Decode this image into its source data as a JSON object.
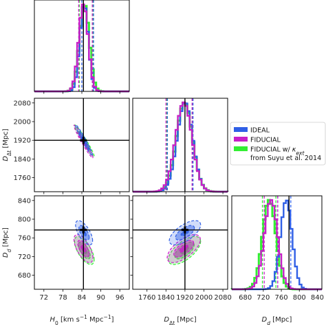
{
  "chart_data": {
    "type": "corner",
    "legend": {
      "placement": "right",
      "entries": [
        {
          "key": "ideal",
          "label": "IDEAL",
          "color": "#2f5fe6"
        },
        {
          "key": "fiducial",
          "label": "FIDUCIAL",
          "color": "#c81fc8"
        },
        {
          "key": "kext",
          "label": "FIDUCIAL w/ κext",
          "label_line2": "from Suyu et al. 2014",
          "color": "#33ee33"
        }
      ]
    },
    "parameters": [
      {
        "key": "H0",
        "label": "H0 [km s⁻¹ Mpc⁻¹]",
        "range": [
          69,
          99
        ],
        "ticks": [
          72,
          78,
          84,
          90,
          96
        ],
        "truth": 84.5
      },
      {
        "key": "Ddt",
        "label": "DΔt [Mpc]",
        "range": [
          1700,
          2100
        ],
        "ticks": [
          1760,
          1840,
          1920,
          2000,
          2080
        ],
        "truth": 1920
      },
      {
        "key": "Dd",
        "label": "Dd [Mpc]",
        "range": [
          650,
          850
        ],
        "ticks": [
          680,
          720,
          760,
          800,
          840
        ],
        "truth": 777
      }
    ],
    "y_axis_labels": [
      {
        "panel": "Ddt_vs_H0",
        "label": "DΔt [Mpc]",
        "ticks": [
          1760,
          1840,
          1920,
          2000,
          2080
        ]
      },
      {
        "panel": "Dd_vs_H0",
        "label": "Dd [Mpc]",
        "ticks": [
          680,
          720,
          760,
          800,
          840
        ]
      }
    ],
    "marginals": {
      "H0": {
        "ideal": {
          "mean": 84.7,
          "sigma": 1.35,
          "q16": 84.0,
          "q84": 87.7
        },
        "fiducial": {
          "mean": 84.5,
          "sigma": 1.5,
          "q16": 83.0,
          "q84": 87.3
        },
        "kext": {
          "mean": 84.8,
          "sigma": 1.55,
          "q16": 83.2,
          "q84": 87.5
        }
      },
      "Ddt": {
        "ideal": {
          "mean": 1920,
          "sigma": 33,
          "q16": 1846,
          "q84": 1954
        },
        "fiducial": {
          "mean": 1915,
          "sigma": 35,
          "q16": 1840,
          "q84": 1950
        },
        "kext": {
          "mean": 1918,
          "sigma": 34,
          "q16": 1844,
          "q84": 1952
        }
      },
      "Dd": {
        "ideal": {
          "mean": 771,
          "sigma": 13,
          "q16": 752,
          "q84": 781
        },
        "fiducial": {
          "mean": 737,
          "sigma": 15,
          "q16": 722,
          "q84": 752
        },
        "kext": {
          "mean": 733,
          "sigma": 15,
          "q16": 718,
          "q84": 748
        }
      }
    },
    "joint_contours": {
      "Ddt_vs_H0": {
        "ideal": {
          "center": [
            84.7,
            1920
          ],
          "corr": -0.97
        },
        "fiducial": {
          "center": [
            84.5,
            1915
          ],
          "corr": -0.97
        },
        "kext": {
          "center": [
            84.8,
            1918
          ],
          "corr": -0.97
        }
      },
      "Dd_vs_H0": {
        "ideal": {
          "center": [
            84.7,
            771
          ],
          "corr": -0.65
        },
        "fiducial": {
          "center": [
            84.5,
            737
          ],
          "corr": -0.65
        },
        "kext": {
          "center": [
            84.8,
            733
          ],
          "corr": -0.65
        }
      },
      "Dd_vs_Ddt": {
        "ideal": {
          "center": [
            1920,
            771
          ],
          "corr": 0.65
        },
        "fiducial": {
          "center": [
            1915,
            737
          ],
          "corr": 0.65
        },
        "kext": {
          "center": [
            1918,
            733
          ],
          "corr": 0.65
        }
      }
    }
  }
}
